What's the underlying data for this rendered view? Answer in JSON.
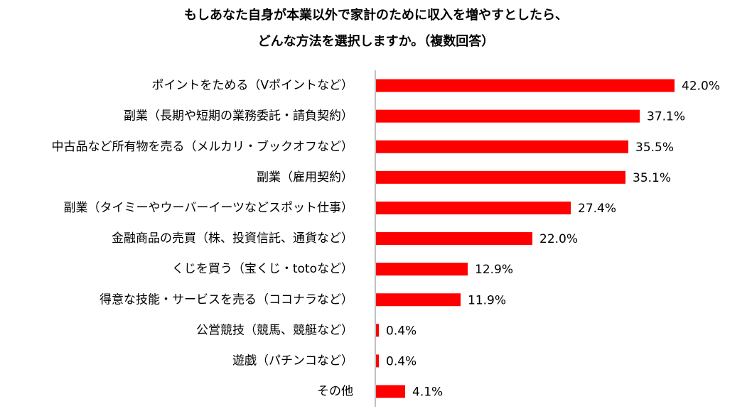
{
  "chart_data": {
    "type": "bar",
    "orientation": "horizontal",
    "title": [
      "もしあなた自身が本業以外で家計のために収入を増やすとしたら、",
      "どんな方法を選択しますか。（複数回答）"
    ],
    "categories": [
      "ポイントをためる（Vポイントなど）",
      "副業（長期や短期の業務委託・請負契約）",
      "中古品など所有物を売る（メルカリ・ブックオフなど）",
      "副業（雇用契約）",
      "副業（タイミーやウーバーイーツなどスポット仕事）",
      "金融商品の売買（株、投資信託、通貨など）",
      "くじを買う（宝くじ・totoなど）",
      "得意な技能・サービスを売る（ココナラなど）",
      "公営競技（競馬、競艇など）",
      "遊戯（パチンコなど）",
      "その他"
    ],
    "values": [
      42.0,
      37.1,
      35.5,
      35.1,
      27.4,
      22.0,
      12.9,
      11.9,
      0.4,
      0.4,
      4.1
    ],
    "value_labels": [
      "42.0%",
      "37.1%",
      "35.5%",
      "35.1%",
      "27.4%",
      "22.0%",
      "12.9%",
      "11.9%",
      "0.4%",
      "0.4%",
      "4.1%"
    ],
    "unit": "%",
    "bar_color": "#ff0000",
    "xlim": [
      0,
      50
    ],
    "xlabel": "",
    "ylabel": "",
    "grid": false,
    "legend": "none"
  }
}
